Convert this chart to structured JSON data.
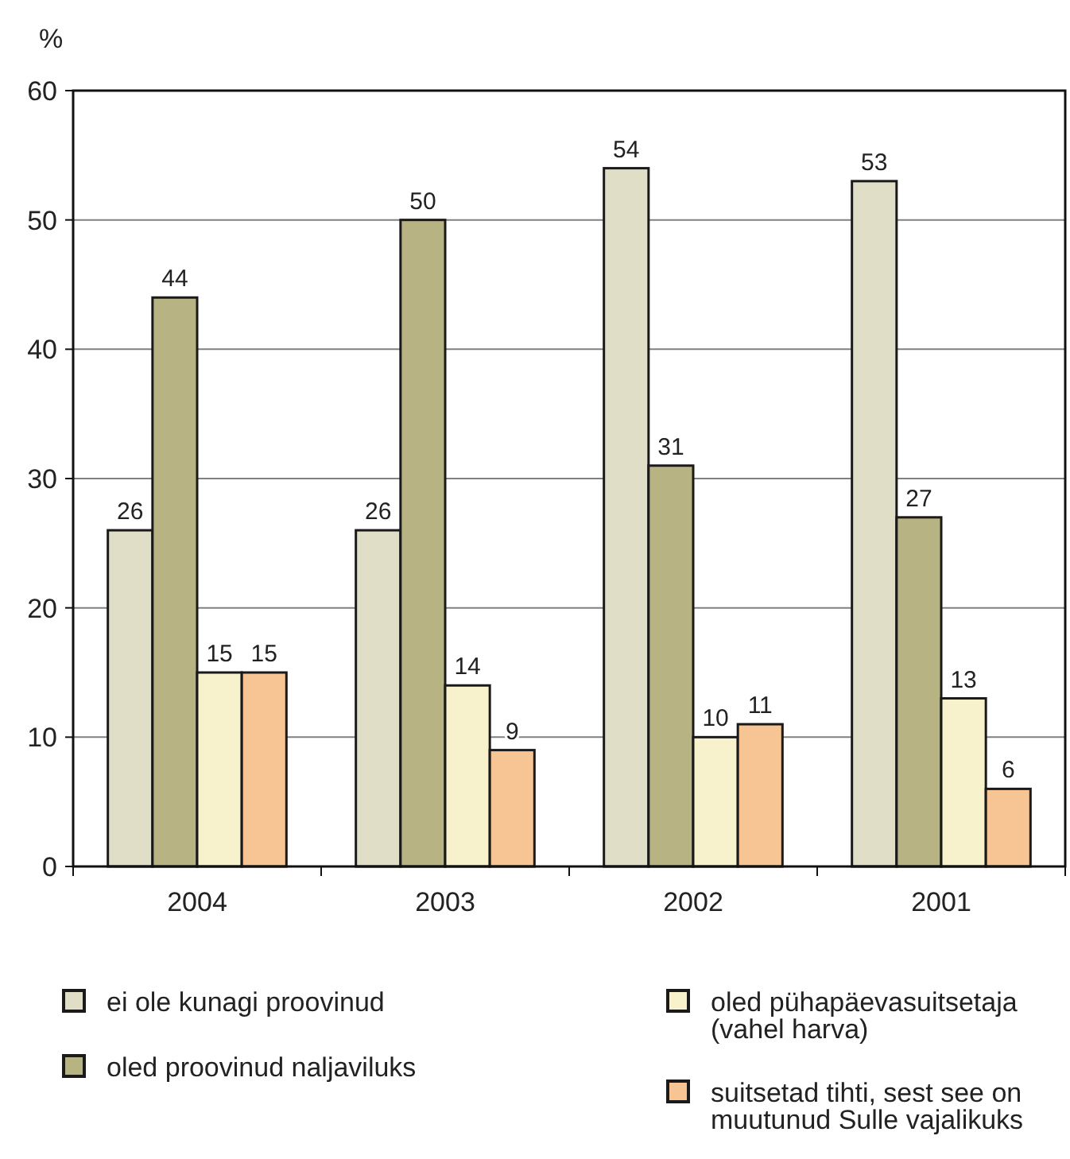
{
  "chart_data": {
    "type": "bar",
    "ylabel": "%",
    "categories": [
      "2004",
      "2003",
      "2002",
      "2001"
    ],
    "ylim": [
      0,
      60
    ],
    "yticks": [
      0,
      10,
      20,
      30,
      40,
      50,
      60
    ],
    "grid": "y",
    "legend": "bottom",
    "data_labels": true,
    "series": [
      {
        "name": "ei ole kunagi proovinud",
        "color": "#e0dec6",
        "values": [
          26,
          26,
          54,
          53
        ]
      },
      {
        "name": "oled proovinud naljaviluks",
        "color": "#b8b382",
        "values": [
          44,
          50,
          31,
          27
        ]
      },
      {
        "name": "oled pühapäevasuitsetaja (vahel harva)",
        "color": "#f8f2cc",
        "values": [
          15,
          14,
          10,
          13
        ]
      },
      {
        "name": "suitsetad tihti, sest see on muutunud Sulle vajalikuks",
        "color": "#f7c594",
        "values": [
          15,
          9,
          11,
          6
        ]
      }
    ]
  }
}
